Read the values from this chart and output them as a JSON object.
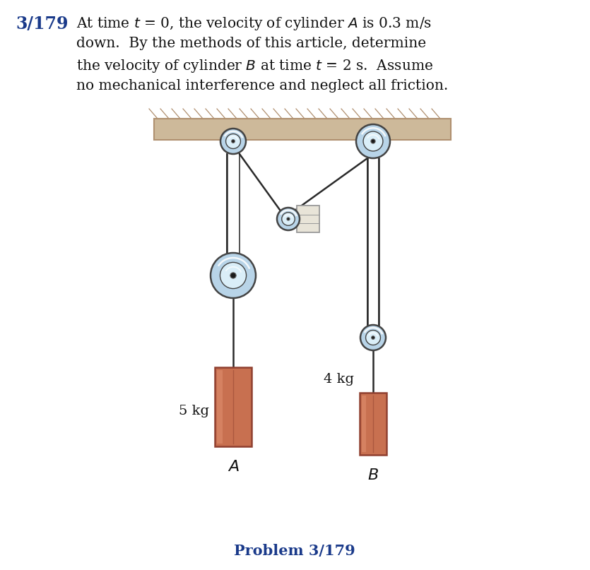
{
  "fig_width": 8.35,
  "fig_height": 8.07,
  "bg_color": "#ffffff",
  "title_number": "3/179",
  "title_number_color": "#1a3a8a",
  "problem_text_lines": [
    "At time $t$ = 0, the velocity of cylinder $A$ is 0.3 m/s",
    "down.  By the methods of this article, determine",
    "the velocity of cylinder $B$ at time $t$ = 2 s.  Assume",
    "no mechanical interference and neglect all friction."
  ],
  "ceiling_color": "#cdb99a",
  "ceiling_edge_color": "#b09070",
  "rope_color": "#2a2a2a",
  "pulley_outer_color": "#b8d4e8",
  "pulley_inner_color": "#daeef8",
  "pulley_center_color": "#1a1a1a",
  "pulley_edge_color": "#444444",
  "cylinder_a_color": "#c87050",
  "cylinder_b_color": "#c87050",
  "cylinder_edge_color": "#904030",
  "cylinder_highlight_color": "#e09070",
  "label_A": "$A$",
  "label_B": "$B$",
  "label_5kg": "5 kg",
  "label_4kg": "4 kg",
  "problem_label": "Problem 3/179",
  "problem_label_color": "#1a3a8a",
  "wall_block_color": "#e8e4d8",
  "wall_block_edge_color": "#999999",
  "guide_color": "#444444"
}
